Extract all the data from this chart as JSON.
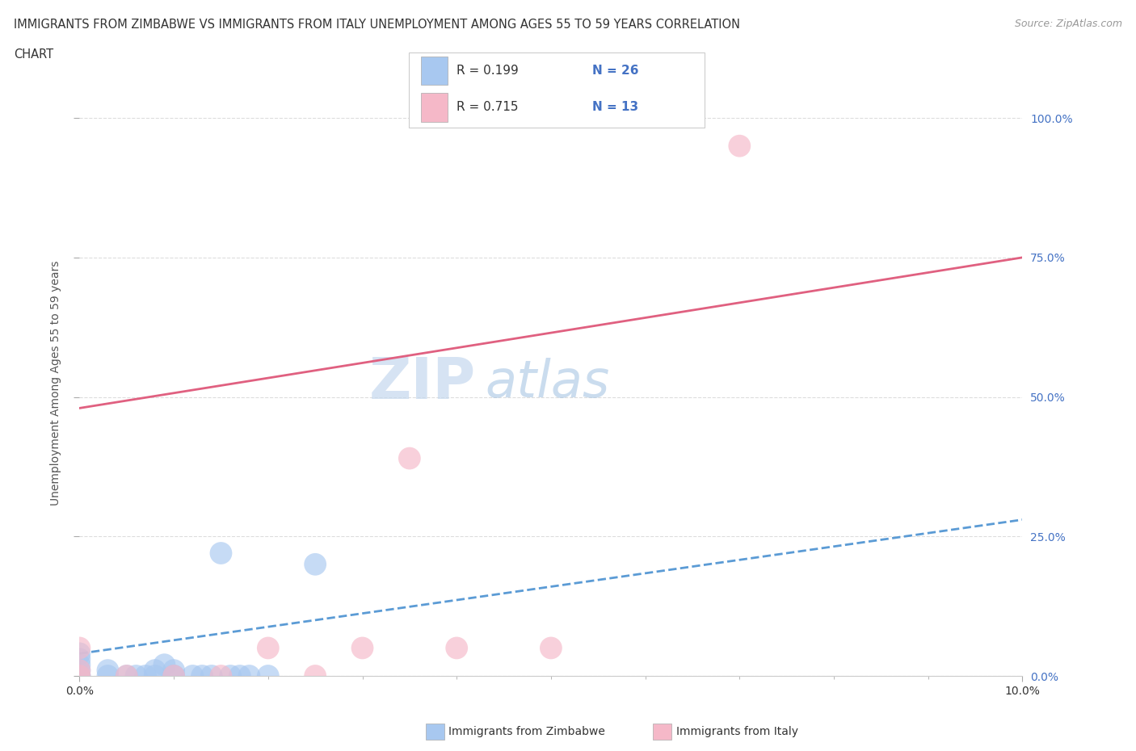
{
  "title_line1": "IMMIGRANTS FROM ZIMBABWE VS IMMIGRANTS FROM ITALY UNEMPLOYMENT AMONG AGES 55 TO 59 YEARS CORRELATION",
  "title_line2": "CHART",
  "source": "Source: ZipAtlas.com",
  "ylabel": "Unemployment Among Ages 55 to 59 years",
  "xmin": 0.0,
  "xmax": 0.1,
  "ymin": 0.0,
  "ymax": 1.05,
  "yticks": [
    0.0,
    0.25,
    0.5,
    0.75,
    1.0
  ],
  "ytick_labels": [
    "0.0%",
    "25.0%",
    "50.0%",
    "75.0%",
    "100.0%"
  ],
  "xtick_labels": [
    "0.0%",
    "10.0%"
  ],
  "r_zimbabwe": 0.199,
  "n_zimbabwe": 26,
  "r_italy": 0.715,
  "n_italy": 13,
  "color_zimbabwe": "#A8C8F0",
  "color_italy": "#F5B8C8",
  "trendline_zimbabwe_color": "#5B9BD5",
  "trendline_italy_color": "#E06080",
  "zimbabwe_x": [
    0.0,
    0.0,
    0.0,
    0.0,
    0.0,
    0.0,
    0.003,
    0.003,
    0.005,
    0.006,
    0.007,
    0.008,
    0.008,
    0.009,
    0.01,
    0.01,
    0.01,
    0.012,
    0.013,
    0.014,
    0.015,
    0.016,
    0.017,
    0.018,
    0.02,
    0.025
  ],
  "zimbabwe_y": [
    0.0,
    0.0,
    0.01,
    0.02,
    0.03,
    0.04,
    0.0,
    0.01,
    0.0,
    0.0,
    0.0,
    0.0,
    0.01,
    0.02,
    0.0,
    0.0,
    0.01,
    0.0,
    0.0,
    0.0,
    0.22,
    0.0,
    0.0,
    0.0,
    0.0,
    0.2
  ],
  "italy_x": [
    0.0,
    0.0,
    0.0,
    0.005,
    0.01,
    0.015,
    0.02,
    0.025,
    0.03,
    0.035,
    0.04,
    0.05,
    0.07
  ],
  "italy_y": [
    0.0,
    0.01,
    0.05,
    0.0,
    0.0,
    0.0,
    0.05,
    0.0,
    0.05,
    0.39,
    0.05,
    0.05,
    0.95
  ],
  "trendline_italy_x0": 0.0,
  "trendline_italy_y0": 0.48,
  "trendline_italy_x1": 0.1,
  "trendline_italy_y1": 0.75,
  "trendline_zim_x0": 0.0,
  "trendline_zim_y0": 0.04,
  "trendline_zim_x1": 0.1,
  "trendline_zim_y1": 0.28,
  "watermark_zip": "ZIP",
  "watermark_atlas": "atlas",
  "legend_zim_color": "#A8C8F0",
  "legend_italy_color": "#F5B8C8",
  "legend_text_color": "#4472C4",
  "bottom_legend_zim": "Immigrants from Zimbabwe",
  "bottom_legend_italy": "Immigrants from Italy"
}
